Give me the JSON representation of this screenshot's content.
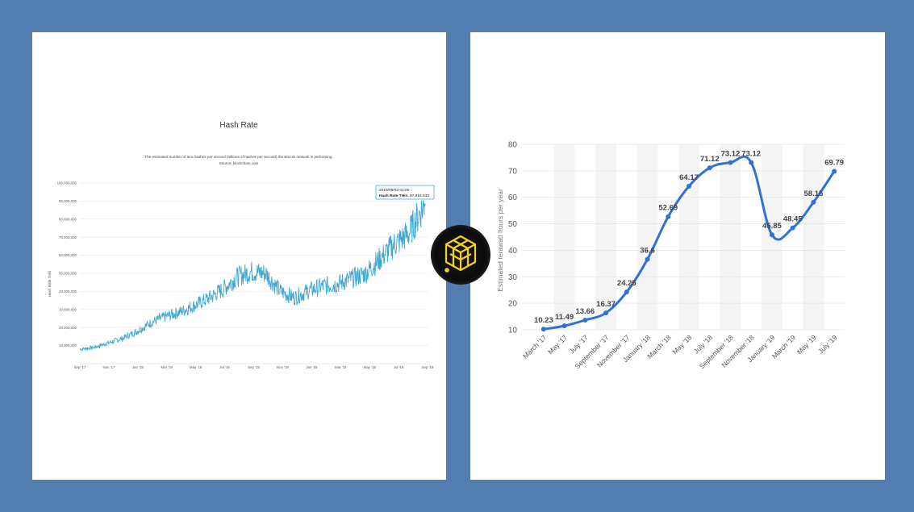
{
  "colors": {
    "background": "#537cb0",
    "hash_line": "#3fa7d2",
    "energy_line": "#2f72d6",
    "logo_accent": "#f2d21b"
  },
  "hash_chart": {
    "title": "Hash Rate",
    "subtitle": "The estimated number of tera hashes per second (trillions of hashes per second) the Bitcoin network is performing.",
    "source": "Source: blockchain.com",
    "ylabel": "Hash Rate TH/s",
    "tooltip_date": "2019/09/03 01:00",
    "tooltip_label": "Hash Rate TH/s:",
    "tooltip_value": "87,818,533"
  },
  "energy_chart": {
    "ylabel": "Estimated terawatt hours per year"
  },
  "logo": {
    "name": "cube-logo-icon"
  },
  "chart_data": [
    {
      "type": "line",
      "title": "Hash Rate",
      "ylabel": "Hash Rate TH/s",
      "xlabel": "",
      "x_ticks": [
        "Sep '17",
        "Nov '17",
        "Jan '18",
        "Mar '18",
        "May '18",
        "Jul '18",
        "Sep '18",
        "Nov '18",
        "Jan '19",
        "Mar '19",
        "May '19",
        "Jul '19",
        "Sep '19"
      ],
      "y_ticks": [
        "10,000,000",
        "20,000,000",
        "30,000,000",
        "40,000,000",
        "50,000,000",
        "60,000,000",
        "70,000,000",
        "80,000,000",
        "90,000,000",
        "100,000,000"
      ],
      "ylim": [
        0,
        100000000
      ],
      "series": [
        {
          "x": [
            "2017-09-01",
            "2017-10-01",
            "2017-11-01",
            "2017-12-01",
            "2018-01-01",
            "2018-02-01",
            "2018-03-01",
            "2018-04-01",
            "2018-05-01",
            "2018-06-01",
            "2018-07-01",
            "2018-08-01",
            "2018-09-01",
            "2018-10-01",
            "2018-11-01",
            "2018-12-01",
            "2019-01-01",
            "2019-02-01",
            "2019-03-01",
            "2019-04-01",
            "2019-05-01",
            "2019-06-01",
            "2019-07-01",
            "2019-08-01",
            "2019-09-03"
          ],
          "values": [
            8000000,
            9000000,
            11500000,
            14000000,
            18000000,
            23000000,
            26000000,
            28500000,
            32000000,
            36000000,
            41000000,
            48000000,
            51000000,
            50000000,
            40000000,
            36500000,
            40500000,
            43000000,
            44000000,
            47000000,
            50000000,
            58000000,
            66000000,
            72000000,
            87818533
          ]
        }
      ],
      "grid": true
    },
    {
      "type": "line",
      "title": "",
      "xlabel": "",
      "ylabel": "Estimated terawatt hours per year",
      "categories": [
        "March '17",
        "May '17",
        "July '17",
        "September '17",
        "November '17",
        "January '18",
        "March '18",
        "May '18",
        "July '18",
        "September '18",
        "November '18",
        "January '19",
        "March '19",
        "May '19",
        "July '19"
      ],
      "values": [
        10.23,
        11.49,
        13.66,
        16.37,
        24.25,
        36.6,
        52.69,
        64.17,
        71.12,
        73.12,
        73.12,
        45.85,
        48.45,
        58.15,
        69.79
      ],
      "data_labels": [
        "10.23",
        "11.49",
        "13.66",
        "16.37",
        "24.25",
        "36.6",
        "52.69",
        "64.17",
        "71.12",
        "73.12",
        "73.12",
        "45.85",
        "48.45",
        "58.15",
        "69.79"
      ],
      "y_ticks": [
        "10",
        "20",
        "30",
        "40",
        "50",
        "60",
        "70",
        "80"
      ],
      "ylim": [
        10,
        80
      ],
      "grid": true
    }
  ]
}
